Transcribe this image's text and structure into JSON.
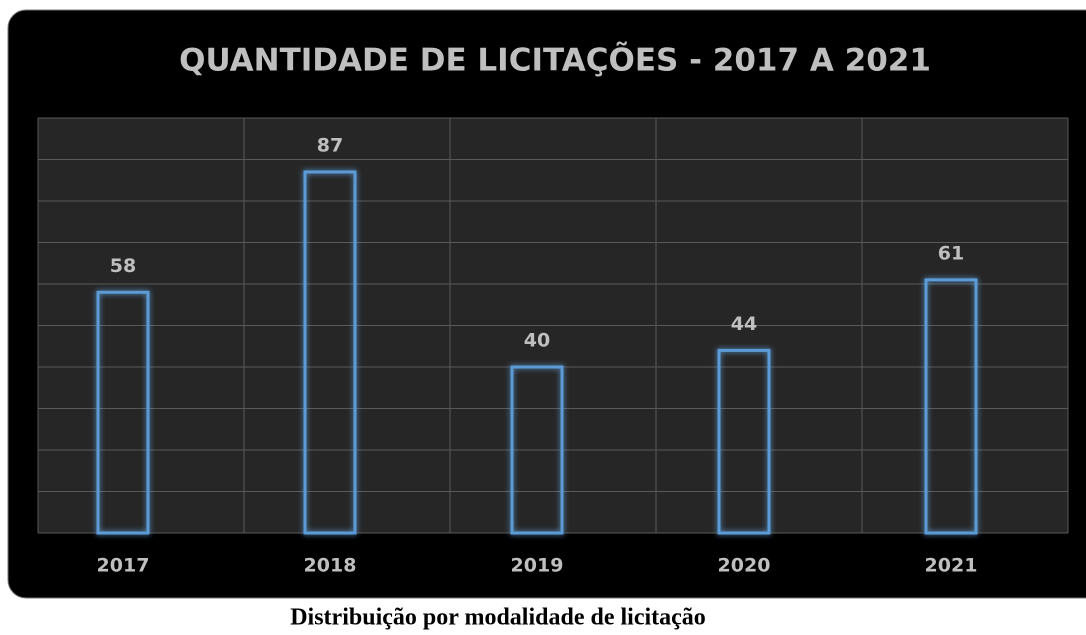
{
  "chart_data": {
    "type": "bar",
    "title": "QUANTIDADE DE LICITAÇÕES - 2017 A 2021",
    "categories": [
      "2017",
      "2018",
      "2019",
      "2020",
      "2021"
    ],
    "values": [
      58,
      87,
      40,
      44,
      61
    ],
    "color": "#5b9bd5",
    "ylim": [
      0,
      100
    ],
    "yticks": [
      0,
      10,
      20,
      30,
      40,
      50,
      60,
      70,
      80,
      90,
      100
    ],
    "grid": true
  },
  "caption": "Distribuição por modalidade de licitação"
}
